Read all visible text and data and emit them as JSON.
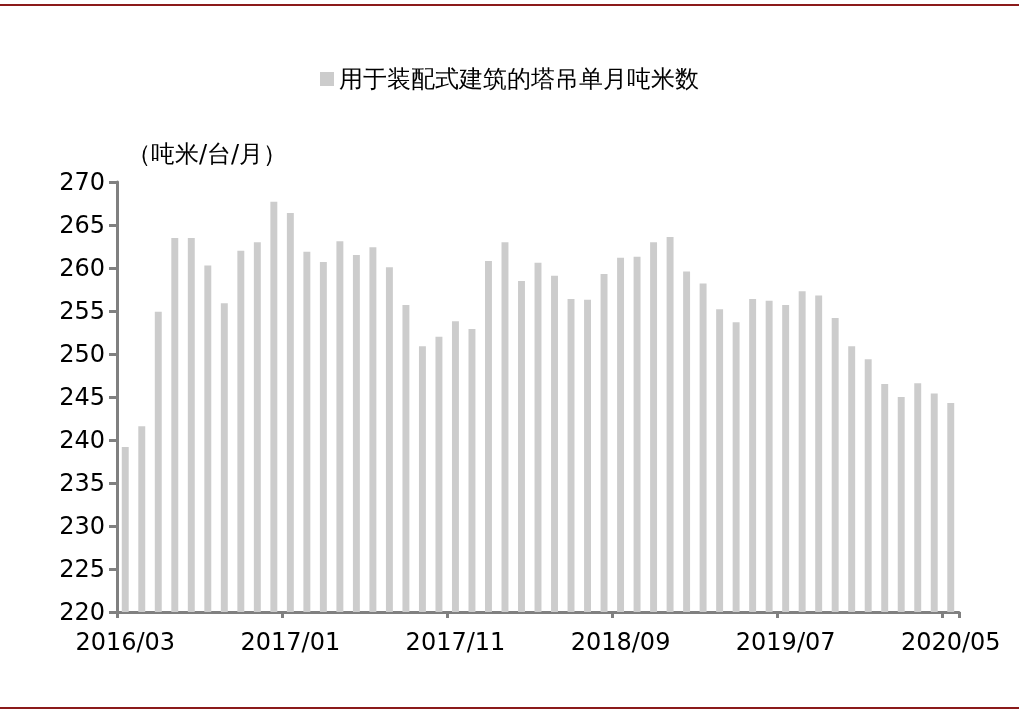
{
  "chart_data": {
    "type": "bar",
    "ylabel": "（吨米/台/月）",
    "categories": [
      "2016/03",
      null,
      null,
      null,
      null,
      null,
      null,
      null,
      null,
      null,
      "2017/01",
      null,
      null,
      null,
      null,
      null,
      null,
      null,
      null,
      null,
      "2017/11",
      null,
      null,
      null,
      null,
      null,
      null,
      null,
      null,
      null,
      "2018/09",
      null,
      null,
      null,
      null,
      null,
      null,
      null,
      null,
      null,
      "2019/07",
      null,
      null,
      null,
      null,
      null,
      null,
      null,
      null,
      null,
      "2020/05"
    ],
    "series": [
      {
        "name": "用于装配式建筑的塔吊单月吨米数",
        "color": "#cccccc",
        "values": [
          239.2,
          241.6,
          254.9,
          263.5,
          263.5,
          260.3,
          255.9,
          262.0,
          263.0,
          267.7,
          266.4,
          261.9,
          260.7,
          263.1,
          261.5,
          262.4,
          260.1,
          255.7,
          250.9,
          252.0,
          253.8,
          252.9,
          260.8,
          263.0,
          258.5,
          260.6,
          259.1,
          256.4,
          256.3,
          259.3,
          261.2,
          261.3,
          263.0,
          263.6,
          259.6,
          258.2,
          255.2,
          253.7,
          256.4,
          256.2,
          255.7,
          257.3,
          256.8,
          254.2,
          250.9,
          249.4,
          246.5,
          245.0,
          246.6,
          245.4,
          244.3
        ]
      }
    ],
    "ylim": [
      220,
      270
    ],
    "yticks": [
      220,
      225,
      230,
      235,
      240,
      245,
      250,
      255,
      260,
      265,
      270
    ],
    "grid": false,
    "legend": "top"
  }
}
